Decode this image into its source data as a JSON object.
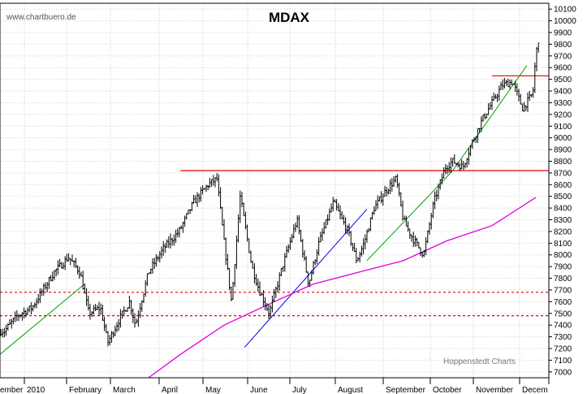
{
  "watermark": "www.chartbuero.de",
  "source": "Hoppenstedt Charts",
  "chart_data": {
    "type": "line",
    "title": "MDAX",
    "xlabel": "",
    "ylabel": "",
    "ylim": [
      6950,
      10150
    ],
    "yticks": [
      7000,
      7100,
      7200,
      7300,
      7400,
      7500,
      7600,
      7700,
      7800,
      7900,
      8000,
      8100,
      8200,
      8300,
      8400,
      8500,
      8600,
      8700,
      8800,
      8900,
      9000,
      9100,
      9200,
      9300,
      9400,
      9500,
      9600,
      9700,
      9800,
      9900,
      10000,
      10100
    ],
    "x_tick_labels": [
      "ember",
      "2010",
      "February",
      "March",
      "April",
      "May",
      "June",
      "July",
      "August",
      "September",
      "October",
      "November",
      "Decem"
    ],
    "grid": true,
    "y_axis_position": "right",
    "series": [
      {
        "label": "index_ohlc",
        "style": "ohlc-bars",
        "color": "#000000",
        "points": [
          {
            "x": "2009-12-01",
            "y": 7350
          },
          {
            "x": "2009-12-10",
            "y": 7480
          },
          {
            "x": "2009-12-20",
            "y": 7550
          },
          {
            "x": "2010-01-04",
            "y": 7850
          },
          {
            "x": "2010-01-14",
            "y": 7980
          },
          {
            "x": "2010-01-22",
            "y": 7850
          },
          {
            "x": "2010-01-28",
            "y": 7500
          },
          {
            "x": "2010-02-05",
            "y": 7550
          },
          {
            "x": "2010-02-10",
            "y": 7250
          },
          {
            "x": "2010-02-18",
            "y": 7450
          },
          {
            "x": "2010-02-25",
            "y": 7600
          },
          {
            "x": "2010-03-01",
            "y": 7400
          },
          {
            "x": "2010-03-10",
            "y": 7850
          },
          {
            "x": "2010-03-20",
            "y": 8050
          },
          {
            "x": "2010-03-31",
            "y": 8200
          },
          {
            "x": "2010-04-10",
            "y": 8450
          },
          {
            "x": "2010-04-20",
            "y": 8600
          },
          {
            "x": "2010-04-26",
            "y": 8650
          },
          {
            "x": "2010-05-01",
            "y": 8100
          },
          {
            "x": "2010-05-06",
            "y": 7600
          },
          {
            "x": "2010-05-12",
            "y": 8500
          },
          {
            "x": "2010-05-20",
            "y": 7900
          },
          {
            "x": "2010-05-25",
            "y": 7700
          },
          {
            "x": "2010-06-01",
            "y": 7500
          },
          {
            "x": "2010-06-10",
            "y": 7900
          },
          {
            "x": "2010-06-20",
            "y": 8300
          },
          {
            "x": "2010-06-28",
            "y": 7750
          },
          {
            "x": "2010-07-05",
            "y": 8100
          },
          {
            "x": "2010-07-15",
            "y": 8450
          },
          {
            "x": "2010-07-25",
            "y": 8200
          },
          {
            "x": "2010-07-31",
            "y": 7950
          },
          {
            "x": "2010-08-05",
            "y": 8100
          },
          {
            "x": "2010-08-12",
            "y": 8400
          },
          {
            "x": "2010-08-20",
            "y": 8550
          },
          {
            "x": "2010-08-27",
            "y": 8650
          },
          {
            "x": "2010-09-01",
            "y": 8300
          },
          {
            "x": "2010-09-07",
            "y": 8150
          },
          {
            "x": "2010-09-15",
            "y": 8000
          },
          {
            "x": "2010-09-22",
            "y": 8450
          },
          {
            "x": "2010-09-30",
            "y": 8750
          },
          {
            "x": "2010-10-05",
            "y": 8800
          },
          {
            "x": "2010-10-12",
            "y": 8750
          },
          {
            "x": "2010-10-18",
            "y": 8950
          },
          {
            "x": "2010-10-25",
            "y": 9150
          },
          {
            "x": "2010-11-01",
            "y": 9300
          },
          {
            "x": "2010-11-08",
            "y": 9450
          },
          {
            "x": "2010-11-15",
            "y": 9480
          },
          {
            "x": "2010-11-22",
            "y": 9250
          },
          {
            "x": "2010-11-29",
            "y": 9380
          },
          {
            "x": "2010-12-01",
            "y": 9700
          },
          {
            "x": "2010-12-03",
            "y": 9850
          }
        ]
      },
      {
        "label": "moving_average",
        "style": "line",
        "color": "#e000e0",
        "points": [
          {
            "x": "2010-03-10",
            "y": 6950
          },
          {
            "x": "2010-04-01",
            "y": 7150
          },
          {
            "x": "2010-05-01",
            "y": 7400
          },
          {
            "x": "2010-06-01",
            "y": 7580
          },
          {
            "x": "2010-07-01",
            "y": 7750
          },
          {
            "x": "2010-08-01",
            "y": 7850
          },
          {
            "x": "2010-09-01",
            "y": 7950
          },
          {
            "x": "2010-10-01",
            "y": 8120
          },
          {
            "x": "2010-11-01",
            "y": 8250
          },
          {
            "x": "2010-12-01",
            "y": 8490
          }
        ]
      }
    ],
    "horizontal_lines": [
      {
        "y": 8720,
        "x_start": "2010-04-01",
        "style": "solid",
        "color": "#e00000"
      },
      {
        "y": 9530,
        "x_start": "2010-11-01",
        "style": "solid",
        "color": "#e00000"
      },
      {
        "y": 7680,
        "style": "dashed",
        "color": "#e00000"
      },
      {
        "y": 7480,
        "style": "dashed",
        "color": "#e00000"
      }
    ],
    "trend_lines": [
      {
        "x1": "2009-11-28",
        "y1": 7150,
        "x2": "2010-01-25",
        "y2": 7750,
        "color": "#00a000"
      },
      {
        "x1": "2010-05-15",
        "y1": 7210,
        "x2": "2010-08-07",
        "y2": 8390,
        "color": "#0000e0"
      },
      {
        "x1": "2010-08-07",
        "y1": 7950,
        "x2": "2010-10-05",
        "y2": 8720,
        "color": "#00a000"
      },
      {
        "x1": "2010-10-05",
        "y1": 8720,
        "x2": "2010-11-25",
        "y2": 9620,
        "color": "#00a000"
      }
    ]
  }
}
